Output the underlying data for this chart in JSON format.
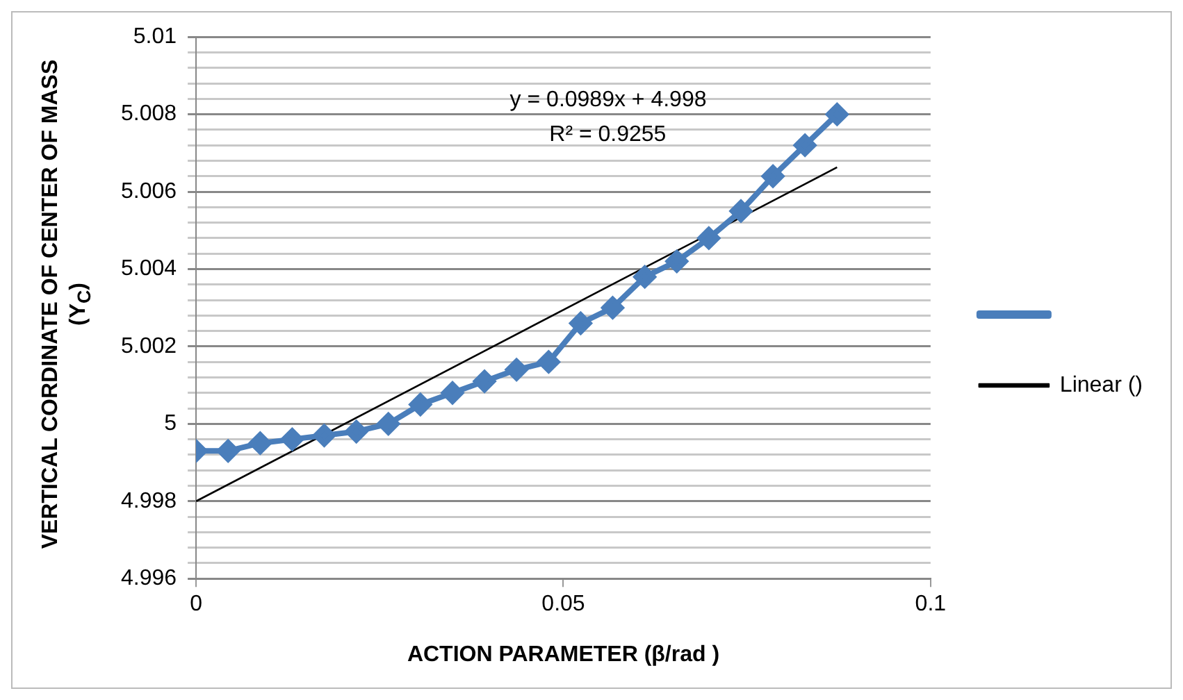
{
  "chart_data": {
    "type": "line",
    "xlabel": "ACTION PARAMETER (β/rad )",
    "ylabel": "VERTICAL CORDINATE OF CENTER OF MASS (Y$_{C}$)",
    "x": [
      0,
      0.00436,
      0.00873,
      0.01309,
      0.01745,
      0.02182,
      0.02618,
      0.03054,
      0.03491,
      0.03927,
      0.04363,
      0.048,
      0.05236,
      0.05672,
      0.06109,
      0.06545,
      0.06981,
      0.07418,
      0.07854,
      0.0829,
      0.08727
    ],
    "series": [
      {
        "color": "#4a7ebb",
        "marker": "diamond",
        "values": [
          4.9993,
          4.9993,
          4.9995,
          4.9996,
          4.9997,
          4.9998,
          5.0,
          5.0005,
          5.0008,
          5.0011,
          5.0014,
          5.0016,
          5.0026,
          5.003,
          5.0038,
          5.0042,
          5.0048,
          5.0055,
          5.0064,
          5.0072,
          5.008
        ]
      },
      {
        "name": "Linear ()",
        "type": "line",
        "color": "#000000",
        "marker": "none",
        "x": [
          0,
          0.08727
        ],
        "values": [
          4.998,
          5.00663
        ]
      }
    ],
    "annotations": [
      "y = 0.0989x + 4.998",
      "R² = 0.9255"
    ],
    "xlim": [
      0,
      0.1
    ],
    "xticks": [
      0,
      0.05,
      0.1
    ],
    "ylim": [
      4.996,
      5.01
    ],
    "yticks": [
      4.996,
      {
        "value": 4.9964,
        "label": null
      },
      {
        "value": 4.9968,
        "label": null
      },
      {
        "value": 4.9972,
        "label": null
      },
      {
        "value": 4.9976,
        "label": null
      },
      4.998,
      {
        "value": 4.9984,
        "label": null
      },
      {
        "value": 4.9988,
        "label": null
      },
      {
        "value": 4.9992,
        "label": null
      },
      {
        "value": 4.9996,
        "label": null
      },
      {
        "value": 5,
        "label": "5"
      },
      {
        "value": 5.0004,
        "label": null
      },
      {
        "value": 5.0008,
        "label": null
      },
      {
        "value": 5.0012,
        "label": null
      },
      {
        "value": 5.0016,
        "label": null
      },
      5.002,
      {
        "value": 5.0024,
        "label": null
      },
      {
        "value": 5.0028,
        "label": null
      },
      {
        "value": 5.0032,
        "label": null
      },
      {
        "value": 5.0036,
        "label": null
      },
      5.004,
      {
        "value": 5.0044,
        "label": null
      },
      {
        "value": 5.0048,
        "label": null
      },
      {
        "value": 5.0052,
        "label": null
      },
      {
        "value": 5.0056,
        "label": null
      },
      5.006,
      {
        "value": 5.0064,
        "label": null
      },
      {
        "value": 5.0068,
        "label": null
      },
      {
        "value": 5.0072,
        "label": null
      },
      {
        "value": 5.0076,
        "label": null
      },
      5.008,
      {
        "value": 5.0084,
        "label": null
      },
      {
        "value": 5.0088,
        "label": null
      },
      {
        "value": 5.0092,
        "label": null
      },
      {
        "value": 5.0096,
        "label": null
      },
      5.01
    ],
    "grid": "y",
    "legend": "right"
  }
}
